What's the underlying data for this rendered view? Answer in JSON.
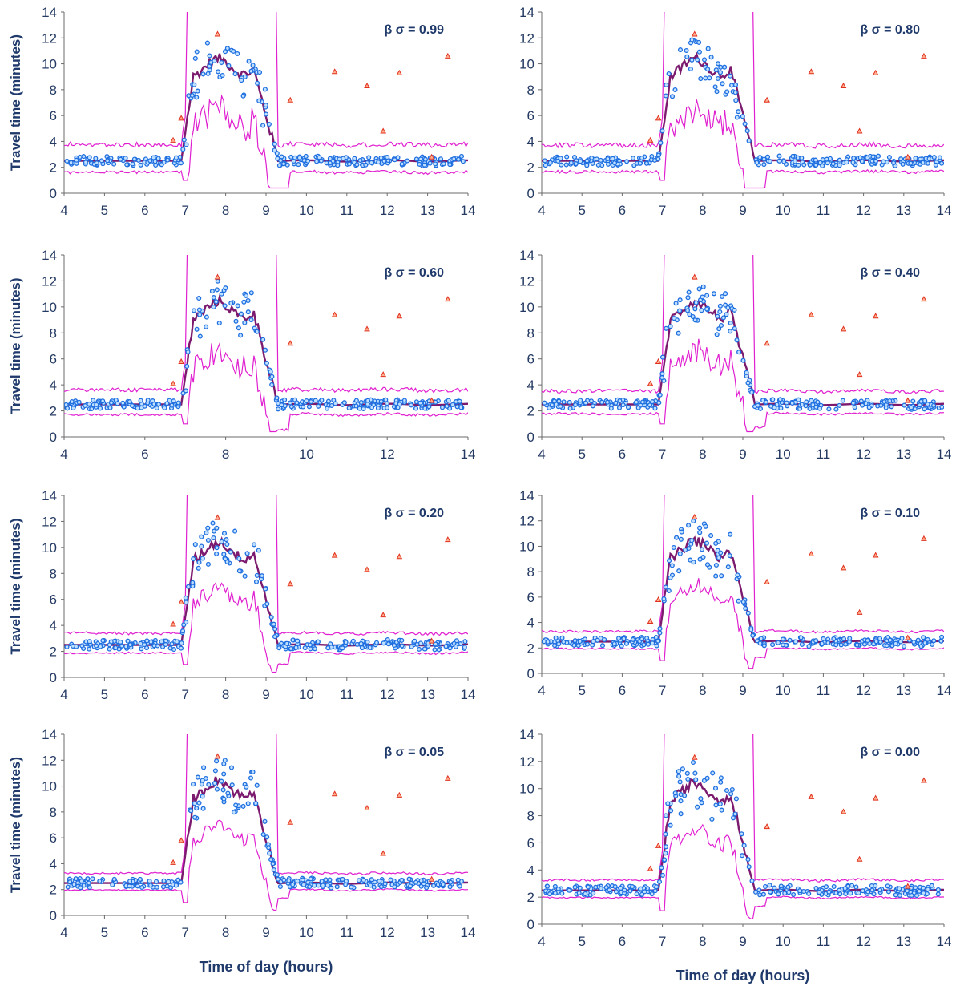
{
  "chart_data": [
    {
      "type": "scatter",
      "annotation": "β σ = 0.99",
      "ylabel": "Travel time (minutes)",
      "xlabel": "",
      "xticks": [
        4,
        5,
        6,
        7,
        8,
        9,
        10,
        11,
        12,
        13,
        14
      ],
      "yticks": [
        0,
        2,
        4,
        6,
        8,
        10,
        12,
        14
      ],
      "xlim": [
        4,
        14
      ],
      "ylim": [
        0,
        14
      ],
      "outliers": [
        [
          6.7,
          4.1
        ],
        [
          6.9,
          5.8
        ],
        [
          7.8,
          12.3
        ],
        [
          9.6,
          7.2
        ],
        [
          10.7,
          9.4
        ],
        [
          11.5,
          8.3
        ],
        [
          11.9,
          4.8
        ],
        [
          12.3,
          9.3
        ],
        [
          13.1,
          2.8
        ],
        [
          13.5,
          10.6
        ]
      ]
    },
    {
      "type": "scatter",
      "annotation": "β σ = 0.80",
      "ylabel": "",
      "xlabel": "",
      "xticks": [
        4,
        5,
        6,
        7,
        8,
        9,
        10,
        11,
        12,
        13,
        14
      ],
      "yticks": [
        0,
        2,
        4,
        6,
        8,
        10,
        12,
        14
      ],
      "xlim": [
        4,
        14
      ],
      "ylim": [
        0,
        14
      ],
      "outliers": [
        [
          6.7,
          4.1
        ],
        [
          6.9,
          5.8
        ],
        [
          7.8,
          12.3
        ],
        [
          9.6,
          7.2
        ],
        [
          10.7,
          9.4
        ],
        [
          11.5,
          8.3
        ],
        [
          11.9,
          4.8
        ],
        [
          12.3,
          9.3
        ],
        [
          13.1,
          2.8
        ],
        [
          13.5,
          10.6
        ]
      ]
    },
    {
      "type": "scatter",
      "annotation": "β σ = 0.60",
      "ylabel": "Travel time (minutes)",
      "xlabel": "",
      "xticks": [
        4,
        6,
        8,
        10,
        12,
        14
      ],
      "yticks": [
        0,
        2,
        4,
        6,
        8,
        10,
        12,
        14
      ],
      "xlim": [
        4,
        14
      ],
      "ylim": [
        0,
        14
      ],
      "outliers": [
        [
          6.7,
          4.1
        ],
        [
          6.9,
          5.8
        ],
        [
          7.8,
          12.3
        ],
        [
          9.6,
          7.2
        ],
        [
          10.7,
          9.4
        ],
        [
          11.5,
          8.3
        ],
        [
          11.9,
          4.8
        ],
        [
          12.3,
          9.3
        ],
        [
          13.1,
          2.8
        ],
        [
          13.5,
          10.6
        ]
      ]
    },
    {
      "type": "scatter",
      "annotation": "β σ = 0.40",
      "ylabel": "",
      "xlabel": "",
      "xticks": [
        4,
        5,
        6,
        7,
        8,
        9,
        10,
        11,
        12,
        13,
        14
      ],
      "yticks": [
        0,
        2,
        4,
        6,
        8,
        10,
        12,
        14
      ],
      "xlim": [
        4,
        14
      ],
      "ylim": [
        0,
        14
      ],
      "outliers": [
        [
          6.7,
          4.1
        ],
        [
          6.9,
          5.8
        ],
        [
          7.8,
          12.3
        ],
        [
          9.6,
          7.2
        ],
        [
          10.7,
          9.4
        ],
        [
          11.5,
          8.3
        ],
        [
          11.9,
          4.8
        ],
        [
          12.3,
          9.3
        ],
        [
          13.1,
          2.8
        ],
        [
          13.5,
          10.6
        ]
      ]
    },
    {
      "type": "scatter",
      "annotation": "β σ = 0.20",
      "ylabel": "Travel time (minutes)",
      "xlabel": "",
      "xticks": [
        4,
        5,
        6,
        7,
        8,
        9,
        10,
        11,
        12,
        13,
        14
      ],
      "yticks": [
        0,
        2,
        4,
        6,
        8,
        10,
        12,
        14
      ],
      "xlim": [
        4,
        14
      ],
      "ylim": [
        0,
        14
      ],
      "outliers": [
        [
          6.7,
          4.1
        ],
        [
          6.9,
          5.8
        ],
        [
          7.8,
          12.3
        ],
        [
          9.6,
          7.2
        ],
        [
          10.7,
          9.4
        ],
        [
          11.5,
          8.3
        ],
        [
          11.9,
          4.8
        ],
        [
          12.3,
          9.3
        ],
        [
          13.1,
          2.8
        ],
        [
          13.5,
          10.6
        ]
      ]
    },
    {
      "type": "scatter",
      "annotation": "β σ = 0.10",
      "ylabel": "",
      "xlabel": "",
      "xticks": [
        4,
        5,
        6,
        7,
        8,
        9,
        10,
        11,
        12,
        13,
        14
      ],
      "yticks": [
        0,
        2,
        4,
        6,
        8,
        10,
        12,
        14
      ],
      "xlim": [
        4,
        14
      ],
      "ylim": [
        0,
        14
      ],
      "outliers": [
        [
          6.7,
          4.1
        ],
        [
          6.9,
          5.8
        ],
        [
          7.8,
          12.3
        ],
        [
          9.6,
          7.2
        ],
        [
          10.7,
          9.4
        ],
        [
          11.5,
          8.3
        ],
        [
          11.9,
          4.8
        ],
        [
          12.3,
          9.3
        ],
        [
          13.1,
          2.8
        ],
        [
          13.5,
          10.6
        ]
      ]
    },
    {
      "type": "scatter",
      "annotation": "β σ = 0.05",
      "ylabel": "Travel time (minutes)",
      "xlabel": "Time of day (hours)",
      "xticks": [
        4,
        5,
        6,
        7,
        8,
        9,
        10,
        11,
        12,
        13,
        14
      ],
      "yticks": [
        0,
        2,
        4,
        6,
        8,
        10,
        12,
        14
      ],
      "xlim": [
        4,
        14
      ],
      "ylim": [
        0,
        14
      ],
      "outliers": [
        [
          6.7,
          4.1
        ],
        [
          6.9,
          5.8
        ],
        [
          7.8,
          12.3
        ],
        [
          9.6,
          7.2
        ],
        [
          10.7,
          9.4
        ],
        [
          11.5,
          8.3
        ],
        [
          11.9,
          4.8
        ],
        [
          12.3,
          9.3
        ],
        [
          13.1,
          2.8
        ],
        [
          13.5,
          10.6
        ]
      ]
    },
    {
      "type": "scatter",
      "annotation": "β σ = 0.00",
      "ylabel": "",
      "xlabel": "Time of day (hours)",
      "xticks": [
        4,
        5,
        6,
        7,
        8,
        9,
        10,
        11,
        12,
        13,
        14
      ],
      "yticks": [
        0,
        2,
        4,
        6,
        8,
        10,
        12,
        14
      ],
      "xlim": [
        4,
        14
      ],
      "ylim": [
        0,
        14
      ],
      "outliers": [
        [
          6.7,
          4.1
        ],
        [
          6.9,
          5.8
        ],
        [
          7.8,
          12.3
        ],
        [
          9.6,
          7.2
        ],
        [
          10.7,
          9.4
        ],
        [
          11.5,
          8.3
        ],
        [
          11.9,
          4.8
        ],
        [
          12.3,
          9.3
        ],
        [
          13.1,
          2.8
        ],
        [
          13.5,
          10.6
        ]
      ]
    }
  ],
  "colors": {
    "observed": "#1f6fe0",
    "observed_fill": "#bfe0ff",
    "outlier": "#e0301e",
    "median": "#7b1a6e",
    "bounds": "#e020d0",
    "axis": "#6b6b6b",
    "text": "#1f3a6b"
  }
}
